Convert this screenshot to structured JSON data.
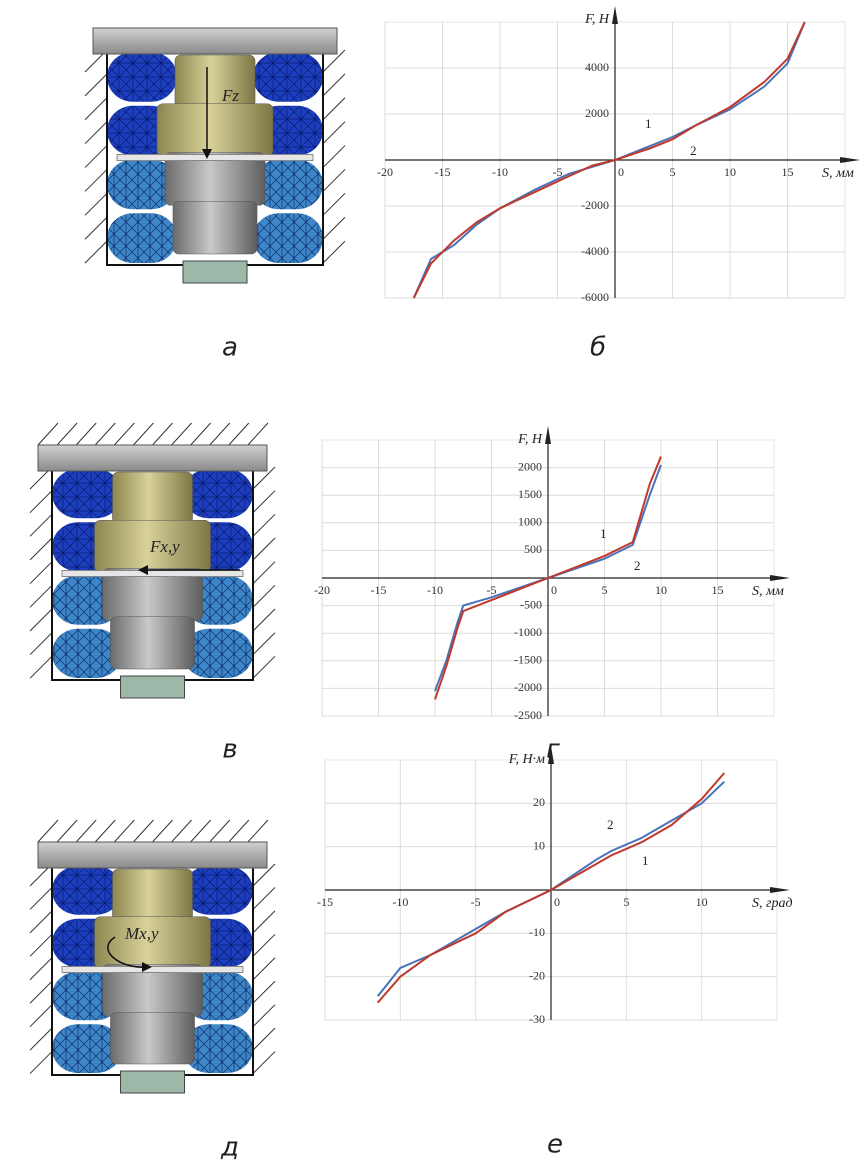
{
  "illustrations": [
    {
      "caption": "а",
      "label": "Fz"
    },
    {
      "caption": "в",
      "label": "Fx,y"
    },
    {
      "caption": "д",
      "label": "Mx,y"
    }
  ],
  "chart_data": [
    {
      "type": "line",
      "caption": "б",
      "x_label": "S, мм",
      "y_label": "F, Н",
      "x": [
        -17.5,
        -16,
        -14,
        -12,
        -10,
        -7,
        -4,
        -2,
        0,
        3,
        5,
        7,
        10,
        13,
        15,
        16.5
      ],
      "series": [
        {
          "name": "1",
          "color": "#4a72b8",
          "values": [
            -6000,
            -4300,
            -3700,
            -2800,
            -2100,
            -1300,
            -600,
            -300,
            0,
            600,
            1000,
            1500,
            2200,
            3200,
            4200,
            6000
          ]
        },
        {
          "name": "2",
          "color": "#c0392b",
          "values": [
            -6000,
            -4500,
            -3500,
            -2700,
            -2100,
            -1400,
            -700,
            -250,
            0,
            500,
            900,
            1500,
            2300,
            3400,
            4400,
            6000
          ]
        }
      ],
      "xlim": [
        -20,
        20
      ],
      "xticks": [
        -20,
        -15,
        -10,
        -5,
        0,
        5,
        10,
        15
      ],
      "ylim": [
        -6000,
        6000
      ],
      "yticks": [
        -6000,
        -4000,
        -2000,
        0,
        2000,
        4000
      ],
      "grid": true
    },
    {
      "type": "line",
      "caption": "г",
      "x_label": "S, мм",
      "y_label": "F, Н",
      "x": [
        -10,
        -9,
        -8,
        -7.5,
        -5,
        0,
        5,
        7,
        7.5,
        8,
        9,
        10
      ],
      "series": [
        {
          "name": "1",
          "color": "#4a72b8",
          "values": [
            -2050,
            -1500,
            -800,
            -500,
            -350,
            0,
            350,
            550,
            600,
            900,
            1500,
            2050
          ]
        },
        {
          "name": "2",
          "color": "#c0392b",
          "values": [
            -2200,
            -1600,
            -900,
            -600,
            -400,
            0,
            400,
            600,
            650,
            1000,
            1700,
            2200
          ]
        }
      ],
      "xlim": [
        -20,
        20
      ],
      "xticks": [
        -20,
        -15,
        -10,
        -5,
        0,
        5,
        10,
        15
      ],
      "ylim": [
        -2500,
        2500
      ],
      "yticks": [
        -2500,
        -2000,
        -1500,
        -1000,
        -500,
        0,
        500,
        1000,
        1500,
        2000
      ],
      "grid": true
    },
    {
      "type": "line",
      "caption": "е",
      "x_label": "S, град",
      "y_label": "F, Н·м",
      "x": [
        -11.5,
        -10,
        -8,
        -5,
        -3,
        0,
        3,
        4,
        6,
        8,
        10,
        11.5
      ],
      "series": [
        {
          "name": "1",
          "color": "#4a72b8",
          "values": [
            -24.5,
            -18,
            -15,
            -9,
            -5,
            0,
            7,
            9,
            12,
            16,
            20,
            25
          ]
        },
        {
          "name": "2",
          "color": "#c0392b",
          "values": [
            -26,
            -20,
            -15,
            -10,
            -5,
            0,
            6,
            8,
            11,
            15,
            21,
            27
          ]
        }
      ],
      "xlim": [
        -15,
        15
      ],
      "xticks": [
        -15,
        -10,
        -5,
        0,
        5,
        10
      ],
      "ylim": [
        -30,
        30
      ],
      "yticks": [
        -30,
        -20,
        -10,
        0,
        10,
        20
      ],
      "grid": true
    }
  ]
}
